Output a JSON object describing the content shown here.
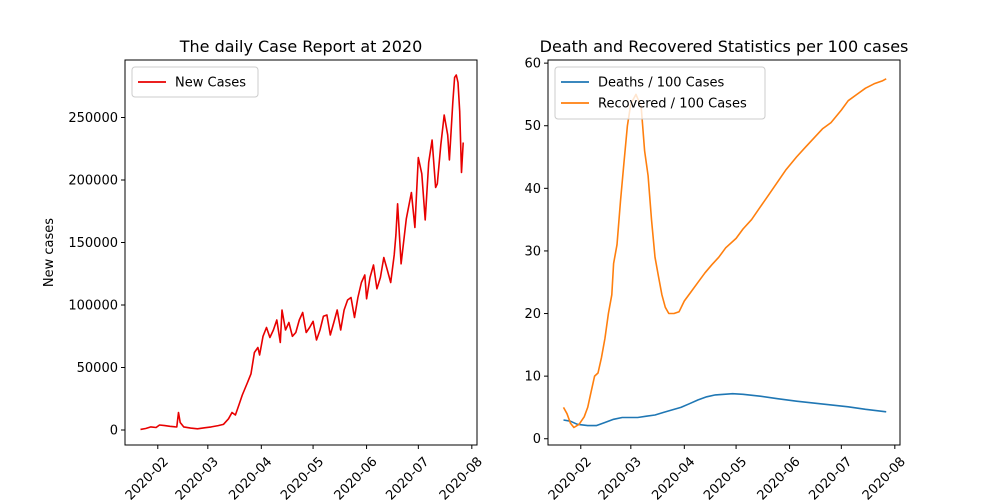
{
  "chart_data": [
    {
      "type": "line",
      "title": "The daily Case Report at 2020",
      "xlabel": "",
      "ylabel": "New cases",
      "x_axis": "date",
      "xlim": [
        "2020-01-13",
        "2020-08-04"
      ],
      "ylim": [
        -12000,
        296000
      ],
      "xticks": [
        "2020-02",
        "2020-03",
        "2020-04",
        "2020-05",
        "2020-06",
        "2020-07",
        "2020-08"
      ],
      "yticks": [
        0,
        50000,
        100000,
        150000,
        200000,
        250000
      ],
      "ytick_labels": [
        "0",
        "50000",
        "100000",
        "150000",
        "200000",
        "250000"
      ],
      "legend": {
        "position": "upper-left",
        "entries": [
          "New Cases"
        ]
      },
      "grid": false,
      "series": [
        {
          "name": "New Cases",
          "color": "#e80000",
          "points": [
            [
              "2020-01-22",
              500
            ],
            [
              "2020-01-25",
              1200
            ],
            [
              "2020-01-28",
              2500
            ],
            [
              "2020-01-31",
              2000
            ],
            [
              "2020-02-02",
              4000
            ],
            [
              "2020-02-05",
              3500
            ],
            [
              "2020-02-08",
              3000
            ],
            [
              "2020-02-11",
              2600
            ],
            [
              "2020-02-12",
              2500
            ],
            [
              "2020-02-13",
              14000
            ],
            [
              "2020-02-14",
              6000
            ],
            [
              "2020-02-16",
              2500
            ],
            [
              "2020-02-20",
              1500
            ],
            [
              "2020-02-24",
              1000
            ],
            [
              "2020-02-28",
              1800
            ],
            [
              "2020-03-03",
              2500
            ],
            [
              "2020-03-07",
              3500
            ],
            [
              "2020-03-10",
              4500
            ],
            [
              "2020-03-13",
              9000
            ],
            [
              "2020-03-15",
              14000
            ],
            [
              "2020-03-17",
              12000
            ],
            [
              "2020-03-19",
              20000
            ],
            [
              "2020-03-21",
              28000
            ],
            [
              "2020-03-24",
              38000
            ],
            [
              "2020-03-26",
              45000
            ],
            [
              "2020-03-28",
              62000
            ],
            [
              "2020-03-30",
              66000
            ],
            [
              "2020-03-31",
              60000
            ],
            [
              "2020-04-02",
              75000
            ],
            [
              "2020-04-04",
              82000
            ],
            [
              "2020-04-06",
              74000
            ],
            [
              "2020-04-08",
              80000
            ],
            [
              "2020-04-10",
              88000
            ],
            [
              "2020-04-12",
              70000
            ],
            [
              "2020-04-13",
              96000
            ],
            [
              "2020-04-15",
              80000
            ],
            [
              "2020-04-17",
              86000
            ],
            [
              "2020-04-19",
              75000
            ],
            [
              "2020-04-21",
              78000
            ],
            [
              "2020-04-23",
              88000
            ],
            [
              "2020-04-25",
              94000
            ],
            [
              "2020-04-27",
              78000
            ],
            [
              "2020-04-29",
              82000
            ],
            [
              "2020-05-01",
              87000
            ],
            [
              "2020-05-03",
              72000
            ],
            [
              "2020-05-05",
              80000
            ],
            [
              "2020-05-07",
              91000
            ],
            [
              "2020-05-09",
              92000
            ],
            [
              "2020-05-11",
              76000
            ],
            [
              "2020-05-13",
              86000
            ],
            [
              "2020-05-15",
              96000
            ],
            [
              "2020-05-17",
              80000
            ],
            [
              "2020-05-19",
              96000
            ],
            [
              "2020-05-21",
              104000
            ],
            [
              "2020-05-23",
              106000
            ],
            [
              "2020-05-25",
              90000
            ],
            [
              "2020-05-27",
              106000
            ],
            [
              "2020-05-29",
              118000
            ],
            [
              "2020-05-31",
              124000
            ],
            [
              "2020-06-01",
              105000
            ],
            [
              "2020-06-03",
              122000
            ],
            [
              "2020-06-05",
              132000
            ],
            [
              "2020-06-07",
              113000
            ],
            [
              "2020-06-09",
              122000
            ],
            [
              "2020-06-11",
              138000
            ],
            [
              "2020-06-13",
              128000
            ],
            [
              "2020-06-15",
              118000
            ],
            [
              "2020-06-17",
              140000
            ],
            [
              "2020-06-18",
              156000
            ],
            [
              "2020-06-19",
              181000
            ],
            [
              "2020-06-21",
              133000
            ],
            [
              "2020-06-24",
              169000
            ],
            [
              "2020-06-27",
              190000
            ],
            [
              "2020-06-29",
              162000
            ],
            [
              "2020-07-01",
              218000
            ],
            [
              "2020-07-03",
              205000
            ],
            [
              "2020-07-05",
              168000
            ],
            [
              "2020-07-07",
              214000
            ],
            [
              "2020-07-09",
              232000
            ],
            [
              "2020-07-11",
              194000
            ],
            [
              "2020-07-12",
              197000
            ],
            [
              "2020-07-14",
              228000
            ],
            [
              "2020-07-16",
              252000
            ],
            [
              "2020-07-18",
              236000
            ],
            [
              "2020-07-19",
              216000
            ],
            [
              "2020-07-21",
              262000
            ],
            [
              "2020-07-22",
              282000
            ],
            [
              "2020-07-23",
              284000
            ],
            [
              "2020-07-24",
              278000
            ],
            [
              "2020-07-25",
              255000
            ],
            [
              "2020-07-26",
              206000
            ],
            [
              "2020-07-27",
              230000
            ]
          ]
        }
      ]
    },
    {
      "type": "line",
      "title": "Death and Recovered Statistics per 100 cases",
      "xlabel": "",
      "ylabel": "",
      "x_axis": "date",
      "xlim": [
        "2020-01-13",
        "2020-08-04"
      ],
      "ylim": [
        -1.0,
        60.5
      ],
      "xticks": [
        "2020-02",
        "2020-03",
        "2020-04",
        "2020-05",
        "2020-06",
        "2020-07",
        "2020-08"
      ],
      "yticks": [
        0,
        10,
        20,
        30,
        40,
        50,
        60
      ],
      "ytick_labels": [
        "0",
        "10",
        "20",
        "30",
        "40",
        "50",
        "60"
      ],
      "legend": {
        "position": "upper-left",
        "entries": [
          "Deaths / 100 Cases",
          "Recovered / 100 Cases"
        ]
      },
      "grid": false,
      "series": [
        {
          "name": "Deaths / 100 Cases",
          "color": "#1f77b4",
          "points": [
            [
              "2020-01-22",
              3.0
            ],
            [
              "2020-01-26",
              2.8
            ],
            [
              "2020-01-30",
              2.3
            ],
            [
              "2020-02-05",
              2.1
            ],
            [
              "2020-02-10",
              2.1
            ],
            [
              "2020-02-15",
              2.6
            ],
            [
              "2020-02-20",
              3.1
            ],
            [
              "2020-02-25",
              3.4
            ],
            [
              "2020-03-01",
              3.4
            ],
            [
              "2020-03-05",
              3.4
            ],
            [
              "2020-03-10",
              3.6
            ],
            [
              "2020-03-15",
              3.8
            ],
            [
              "2020-03-20",
              4.2
            ],
            [
              "2020-03-25",
              4.6
            ],
            [
              "2020-03-30",
              5.0
            ],
            [
              "2020-04-04",
              5.6
            ],
            [
              "2020-04-09",
              6.2
            ],
            [
              "2020-04-14",
              6.7
            ],
            [
              "2020-04-19",
              7.0
            ],
            [
              "2020-04-24",
              7.1
            ],
            [
              "2020-04-29",
              7.2
            ],
            [
              "2020-05-05",
              7.1
            ],
            [
              "2020-05-15",
              6.8
            ],
            [
              "2020-05-25",
              6.4
            ],
            [
              "2020-06-05",
              6.0
            ],
            [
              "2020-06-15",
              5.7
            ],
            [
              "2020-06-25",
              5.4
            ],
            [
              "2020-07-05",
              5.1
            ],
            [
              "2020-07-15",
              4.7
            ],
            [
              "2020-07-27",
              4.3
            ]
          ]
        },
        {
          "name": "Recovered / 100 Cases",
          "color": "#ff7f0e",
          "points": [
            [
              "2020-01-22",
              5.0
            ],
            [
              "2020-01-24",
              4.0
            ],
            [
              "2020-01-26",
              2.5
            ],
            [
              "2020-01-28",
              1.8
            ],
            [
              "2020-01-31",
              2.3
            ],
            [
              "2020-02-03",
              3.5
            ],
            [
              "2020-02-05",
              5.0
            ],
            [
              "2020-02-07",
              7.5
            ],
            [
              "2020-02-09",
              10.0
            ],
            [
              "2020-02-11",
              10.5
            ],
            [
              "2020-02-13",
              13.0
            ],
            [
              "2020-02-15",
              16.0
            ],
            [
              "2020-02-17",
              20.0
            ],
            [
              "2020-02-19",
              23.0
            ],
            [
              "2020-02-20",
              28.0
            ],
            [
              "2020-02-22",
              31.0
            ],
            [
              "2020-02-24",
              38.0
            ],
            [
              "2020-02-26",
              44.0
            ],
            [
              "2020-02-28",
              50.0
            ],
            [
              "2020-03-01",
              53.5
            ],
            [
              "2020-03-04",
              55.0
            ],
            [
              "2020-03-07",
              53.0
            ],
            [
              "2020-03-09",
              46.0
            ],
            [
              "2020-03-11",
              42.0
            ],
            [
              "2020-03-13",
              35.0
            ],
            [
              "2020-03-15",
              29.0
            ],
            [
              "2020-03-17",
              26.0
            ],
            [
              "2020-03-19",
              23.0
            ],
            [
              "2020-03-21",
              21.0
            ],
            [
              "2020-03-23",
              20.0
            ],
            [
              "2020-03-26",
              20.0
            ],
            [
              "2020-03-29",
              20.3
            ],
            [
              "2020-04-01",
              22.0
            ],
            [
              "2020-04-05",
              23.5
            ],
            [
              "2020-04-09",
              25.0
            ],
            [
              "2020-04-13",
              26.5
            ],
            [
              "2020-04-17",
              27.8
            ],
            [
              "2020-04-21",
              29.0
            ],
            [
              "2020-04-25",
              30.5
            ],
            [
              "2020-05-01",
              32.0
            ],
            [
              "2020-05-05",
              33.5
            ],
            [
              "2020-05-10",
              35.0
            ],
            [
              "2020-05-15",
              37.0
            ],
            [
              "2020-05-20",
              39.0
            ],
            [
              "2020-05-25",
              41.0
            ],
            [
              "2020-05-30",
              43.0
            ],
            [
              "2020-06-05",
              45.0
            ],
            [
              "2020-06-10",
              46.5
            ],
            [
              "2020-06-15",
              48.0
            ],
            [
              "2020-06-20",
              49.5
            ],
            [
              "2020-06-25",
              50.5
            ],
            [
              "2020-07-01",
              52.5
            ],
            [
              "2020-07-05",
              54.0
            ],
            [
              "2020-07-10",
              55.0
            ],
            [
              "2020-07-15",
              56.0
            ],
            [
              "2020-07-20",
              56.7
            ],
            [
              "2020-07-25",
              57.2
            ],
            [
              "2020-07-27",
              57.5
            ]
          ]
        }
      ]
    }
  ]
}
